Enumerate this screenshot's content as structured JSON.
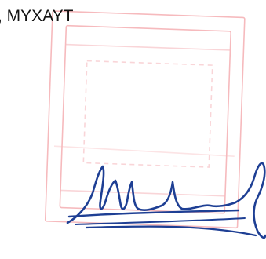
{
  "document": {
    "text": ", MYXAYT"
  }
}
